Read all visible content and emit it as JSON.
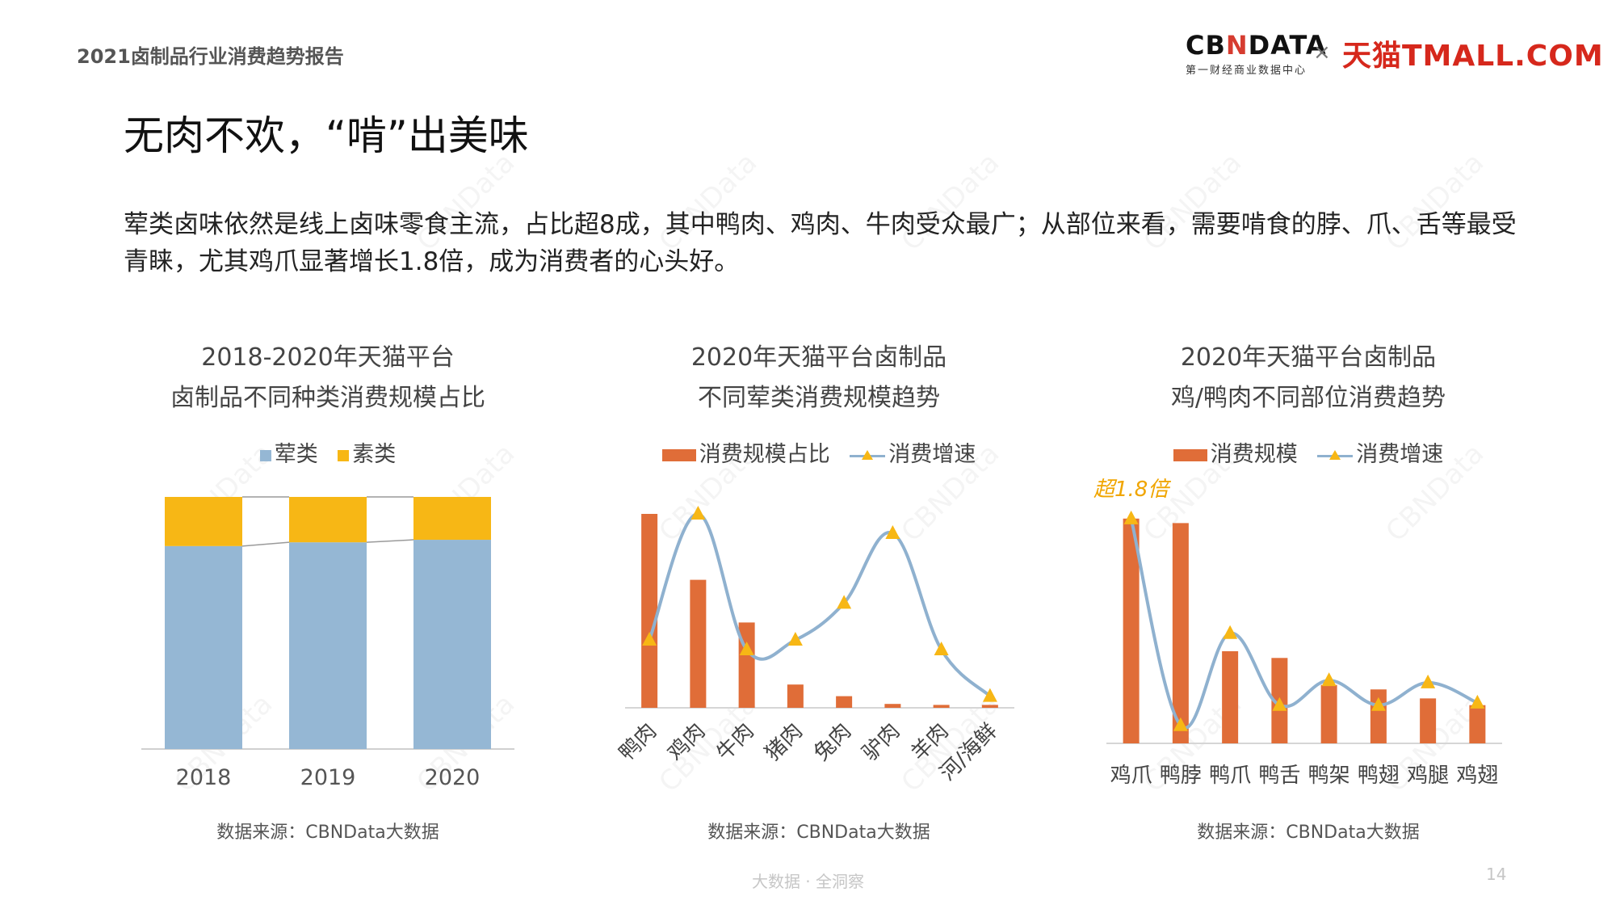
{
  "header": {
    "report_name": "2021卤制品行业消费趋势报告",
    "logo_cbn_main_a": "CB",
    "logo_cbn_main_n": "N",
    "logo_cbn_main_b": "DATA",
    "logo_cbn_sub": "第一财经商业数据中心",
    "logo_x": "×",
    "logo_tmall": "天猫TMALL.COM"
  },
  "page": {
    "title": "无肉不欢，“啃”出美味",
    "lead": "荤类卤味依然是线上卤味零食主流，占比超8成，其中鸭肉、鸡肉、牛肉受众最广；从部位来看，需要啃食的脖、爪、舌等最受青睐，尤其鸡爪显著增长1.8倍，成为消费者的心头好。",
    "footer": "大数据 · 全洞察",
    "page_number": "14",
    "watermark": "CBNData"
  },
  "colors": {
    "meat": "#95b7d4",
    "veg": "#f7b715",
    "bar": "#e06d38",
    "line": "#8fb1cf",
    "marker": "#f7b715",
    "annotation": "#f0a500"
  },
  "chart_data": [
    {
      "type": "bar",
      "stacked": true,
      "title_line1": "2018-2020年天猫平台",
      "title_line2": "卤制品不同种类消费规模占比",
      "categories": [
        "2018",
        "2019",
        "2020"
      ],
      "series": [
        {
          "name": "荤类",
          "values": [
            80.5,
            82,
            83
          ]
        },
        {
          "name": "素类",
          "values": [
            19.5,
            18,
            17
          ]
        }
      ],
      "ylim": [
        0,
        100
      ],
      "legend_position": "top",
      "source": "数据来源：CBNData大数据"
    },
    {
      "type": "bar",
      "title_line1": "2020年天猫平台卤制品",
      "title_line2": "不同荤类消费规模趋势",
      "categories": [
        "鸭肉",
        "鸡肉",
        "牛肉",
        "猪肉",
        "兔肉",
        "驴肉",
        "羊肉",
        "河/海鲜"
      ],
      "series": [
        {
          "name": "消费规模占比",
          "kind": "bar",
          "values": [
            100,
            66,
            44,
            12,
            6,
            2,
            1.5,
            1.5
          ]
        },
        {
          "name": "消费增速",
          "kind": "line",
          "values": [
            35,
            100,
            30,
            35,
            54,
            90,
            30,
            6
          ]
        }
      ],
      "ylim": [
        0,
        110
      ],
      "legend_position": "top",
      "source": "数据来源：CBNData大数据"
    },
    {
      "type": "bar",
      "title_line1": "2020年天猫平台卤制品",
      "title_line2": "鸡/鸭肉不同部位消费趋势",
      "categories": [
        "鸡爪",
        "鸭脖",
        "鸭爪",
        "鸭舌",
        "鸭架",
        "鸭翅",
        "鸡腿",
        "鸡翅"
      ],
      "series": [
        {
          "name": "消费规模",
          "kind": "bar",
          "values": [
            100,
            98,
            41,
            38,
            26,
            24,
            20,
            17
          ]
        },
        {
          "name": "消费增速",
          "kind": "line",
          "values": [
            100,
            8,
            49,
            17,
            28,
            17,
            27,
            18
          ]
        }
      ],
      "annotations": [
        {
          "category": "鸡爪",
          "text": "超1.8倍"
        }
      ],
      "ylim": [
        0,
        110
      ],
      "legend_position": "top",
      "source": "数据来源：CBNData大数据"
    }
  ]
}
